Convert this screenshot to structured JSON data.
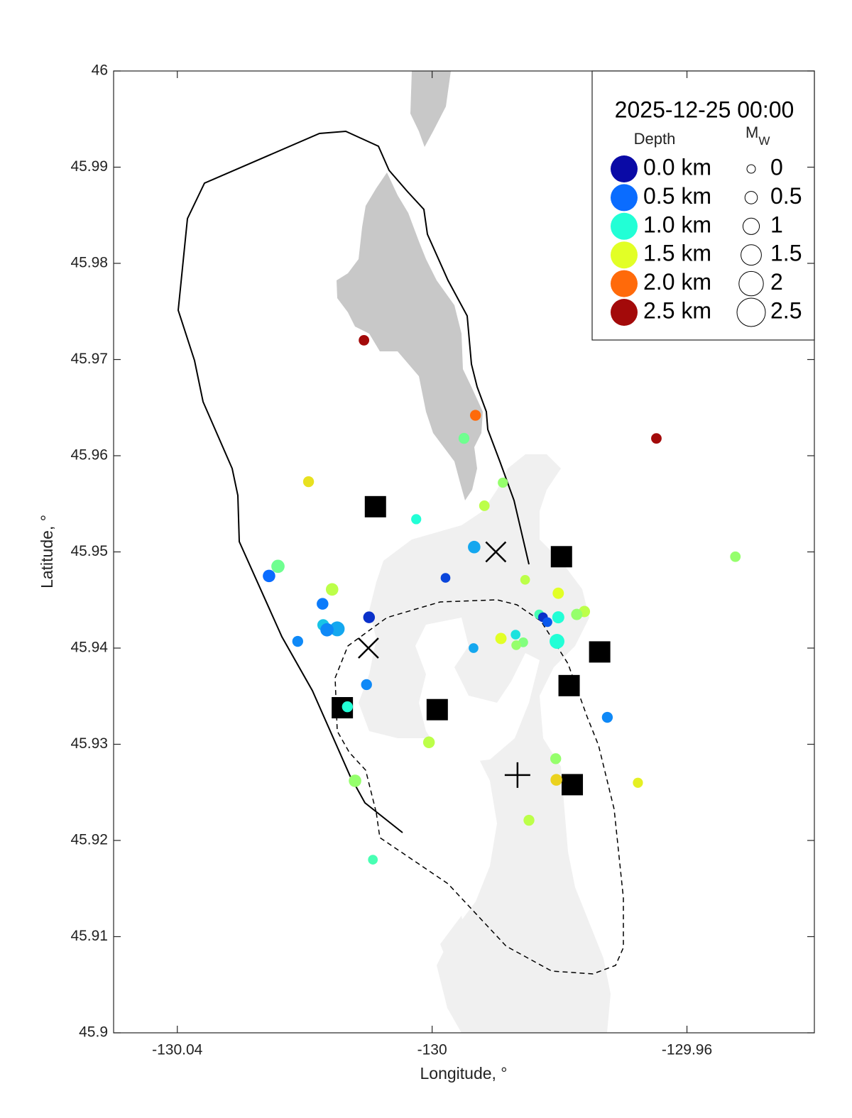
{
  "chart_data": {
    "type": "scatter",
    "title": "2025-12-25 00:00",
    "xlabel": "Longitude, °",
    "ylabel": "Latitude, °",
    "xlim": [
      -130.05,
      -129.94
    ],
    "ylim": [
      45.9,
      46
    ],
    "xticks": [
      -130.04,
      -130,
      -129.96
    ],
    "yticks": [
      45.9,
      45.91,
      45.92,
      45.93,
      45.94,
      45.95,
      45.96,
      45.97,
      45.98,
      45.99,
      46
    ],
    "x": [
      -130.0107,
      -129.9932,
      -129.995,
      -129.9648,
      -130.0194,
      -129.9889,
      -129.9918,
      -130.0025,
      -129.9934,
      -129.9524,
      -130.0242,
      -130.0256,
      -129.9979,
      -129.9854,
      -130.0157,
      -129.9802,
      -130.0172,
      -130.0099,
      -129.9761,
      -129.9773,
      -129.9832,
      -129.9826,
      -129.9819,
      -129.9802,
      -130.0171,
      -130.0149,
      -130.0165,
      -129.9892,
      -129.9869,
      -129.9804,
      -129.9857,
      -129.9868,
      -130.0211,
      -129.9935,
      -130.0103,
      -130.0133,
      -129.9725,
      -130.0005,
      -129.9806,
      -129.9805,
      -130.0121,
      -129.9677,
      -129.9848,
      -130.0093
    ],
    "y": [
      45.972,
      45.9642,
      45.9618,
      45.9618,
      45.9573,
      45.9572,
      45.9548,
      45.9534,
      45.9505,
      45.9495,
      45.9485,
      45.9475,
      45.9473,
      45.9471,
      45.9461,
      45.9457,
      45.9446,
      45.9432,
      45.9438,
      45.9435,
      45.9435,
      45.9432,
      45.9427,
      45.9432,
      45.9424,
      45.942,
      45.9419,
      45.941,
      45.9414,
      45.9407,
      45.9406,
      45.9403,
      45.9407,
      45.94,
      45.9362,
      45.9339,
      45.9328,
      45.9302,
      45.9285,
      45.9263,
      45.9262,
      45.926,
      45.9221,
      45.918
    ],
    "depth": [
      2.5,
      2.0,
      1.2,
      2.5,
      1.6,
      1.3,
      1.4,
      1.0,
      0.7,
      1.3,
      1.2,
      0.5,
      0.3,
      1.4,
      1.4,
      1.5,
      0.55,
      0.2,
      1.4,
      1.3,
      1.1,
      0.2,
      0.4,
      1.0,
      0.8,
      0.7,
      0.6,
      1.5,
      0.9,
      1.0,
      1.25,
      1.3,
      0.6,
      0.7,
      0.6,
      1.0,
      0.6,
      1.4,
      1.3,
      1.65,
      1.3,
      1.55,
      1.4,
      1.1
    ],
    "mw": [
      0.25,
      0.3,
      0.3,
      0.25,
      0.3,
      0.2,
      0.25,
      0.2,
      0.5,
      0.25,
      0.6,
      0.5,
      0.15,
      0.15,
      0.5,
      0.35,
      0.4,
      0.4,
      0.35,
      0.35,
      0.15,
      0.15,
      0.15,
      0.45,
      0.4,
      0.8,
      0.6,
      0.35,
      0.15,
      0.8,
      0.15,
      0.15,
      0.3,
      0.15,
      0.3,
      0.3,
      0.3,
      0.4,
      0.3,
      0.4,
      0.5,
      0.2,
      0.3,
      0.15
    ],
    "color_legend": {
      "title": "Depth",
      "entries": [
        {
          "value": 0,
          "label": "0.0 km"
        },
        {
          "value": 0.5,
          "label": "0.5 km"
        },
        {
          "value": 1,
          "label": "1.0 km"
        },
        {
          "value": 1.5,
          "label": "1.5 km"
        },
        {
          "value": 2,
          "label": "2.0 km"
        },
        {
          "value": 2.5,
          "label": "2.5 km"
        }
      ],
      "colors": [
        "#0a0aa6",
        "#0a6cff",
        "#22ffd6",
        "#e2ff26",
        "#ff6a0a",
        "#a30a0a"
      ]
    },
    "size_legend": {
      "title": "M",
      "subscript": "W",
      "values": [
        0,
        0.5,
        1,
        1.5,
        2,
        2.5
      ]
    },
    "stations": {
      "x": [
        -130.0089,
        -129.9797,
        -129.9737,
        -129.9785,
        -130.0141,
        -129.9992,
        -129.978
      ],
      "y": [
        45.9547,
        45.9495,
        45.9396,
        45.9361,
        45.9338,
        45.9336,
        45.9258
      ],
      "color": "#000000"
    },
    "cross_markers": {
      "x": [
        -129.99,
        -130.01
      ],
      "y": [
        45.95,
        45.94
      ],
      "color": "#000000"
    },
    "plus_markers": {
      "x": [
        -129.9866
      ],
      "y": [
        45.9268
      ],
      "color": "#000000"
    }
  }
}
